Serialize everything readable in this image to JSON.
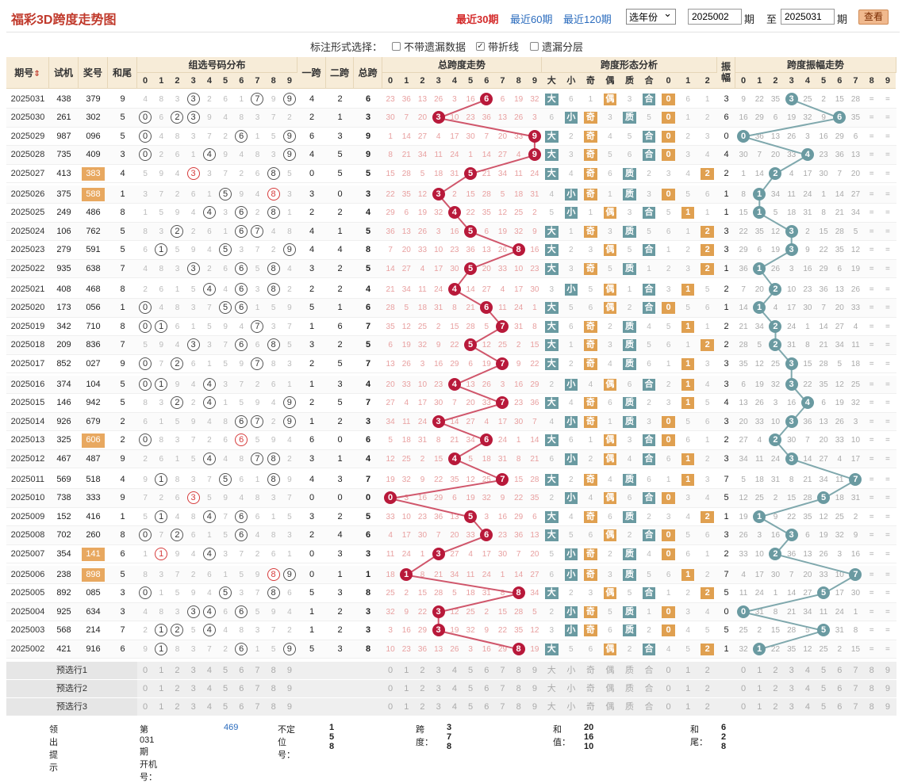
{
  "header": {
    "title": "福彩3D跨度走势图",
    "periods": [
      "最近30期",
      "最近60期",
      "最近120期"
    ],
    "active_period": 0,
    "year_select": "选年份",
    "from_value": "2025002",
    "from_label": "期",
    "to_label": "至",
    "to_value": "2025031",
    "to_label2": "期",
    "search_button": "查看"
  },
  "options": {
    "label": "标注形式选择：",
    "items": [
      {
        "label": "不带遗漏数据",
        "checked": false
      },
      {
        "label": "带折线",
        "checked": true
      },
      {
        "label": "遗漏分层",
        "checked": false
      }
    ]
  },
  "table": {
    "group_headers": [
      "期号",
      "试机",
      "奖号",
      "和尾",
      "组选号码分布",
      "一跨",
      "二跨",
      "总跨",
      "总跨度走势",
      "跨度形态分析",
      "振幅",
      "跨度振幅走势"
    ],
    "sort_icon": "sort-icon",
    "digits": [
      "0",
      "1",
      "2",
      "3",
      "4",
      "5",
      "6",
      "7",
      "8",
      "9"
    ],
    "shape_headers": [
      "大",
      "小",
      "奇",
      "偶",
      "质",
      "合",
      "0",
      "1",
      "2"
    ],
    "rows": [
      {
        "period": "2025031",
        "trial": "438",
        "draw": "379",
        "tail": "9",
        "trial_hl": false,
        "span1": "4",
        "span2": "2",
        "total": "6",
        "amp": "3"
      },
      {
        "period": "2025030",
        "trial": "261",
        "draw": "302",
        "tail": "5",
        "trial_hl": false,
        "span1": "2",
        "span2": "1",
        "total": "3",
        "amp": "6"
      },
      {
        "period": "2025029",
        "trial": "987",
        "draw": "096",
        "tail": "5",
        "trial_hl": false,
        "span1": "6",
        "span2": "3",
        "total": "9",
        "amp": "0"
      },
      {
        "period": "2025028",
        "trial": "735",
        "draw": "409",
        "tail": "3",
        "trial_hl": false,
        "span1": "4",
        "span2": "5",
        "total": "9",
        "amp": "4"
      },
      {
        "period": "2025027",
        "trial": "413",
        "draw": "383",
        "tail": "4",
        "trial_hl": true,
        "span1": "0",
        "span2": "5",
        "total": "5",
        "amp": "2"
      },
      {
        "period": "2025026",
        "trial": "375",
        "draw": "588",
        "tail": "1",
        "trial_hl": true,
        "span1": "3",
        "span2": "0",
        "total": "3",
        "amp": "1"
      },
      {
        "period": "2025025",
        "trial": "249",
        "draw": "486",
        "tail": "8",
        "trial_hl": false,
        "span1": "2",
        "span2": "2",
        "total": "4",
        "amp": "1"
      },
      {
        "period": "2025024",
        "trial": "106",
        "draw": "762",
        "tail": "5",
        "trial_hl": false,
        "span1": "4",
        "span2": "1",
        "total": "5",
        "amp": "3"
      },
      {
        "period": "2025023",
        "trial": "279",
        "draw": "591",
        "tail": "5",
        "trial_hl": false,
        "span1": "4",
        "span2": "4",
        "total": "8",
        "amp": "3"
      },
      {
        "period": "2025022",
        "trial": "935",
        "draw": "638",
        "tail": "7",
        "trial_hl": false,
        "span1": "3",
        "span2": "2",
        "total": "5",
        "amp": "1"
      },
      {
        "period": "2025021",
        "trial": "408",
        "draw": "468",
        "tail": "8",
        "trial_hl": false,
        "span1": "2",
        "span2": "2",
        "total": "4",
        "amp": "2"
      },
      {
        "period": "2025020",
        "trial": "173",
        "draw": "056",
        "tail": "1",
        "trial_hl": false,
        "span1": "5",
        "span2": "1",
        "total": "6",
        "amp": "1"
      },
      {
        "period": "2025019",
        "trial": "342",
        "draw": "710",
        "tail": "8",
        "trial_hl": false,
        "span1": "1",
        "span2": "6",
        "total": "7",
        "amp": "2"
      },
      {
        "period": "2025018",
        "trial": "209",
        "draw": "836",
        "tail": "7",
        "trial_hl": false,
        "span1": "3",
        "span2": "2",
        "total": "5",
        "amp": "2"
      },
      {
        "period": "2025017",
        "trial": "852",
        "draw": "027",
        "tail": "9",
        "trial_hl": false,
        "span1": "2",
        "span2": "5",
        "total": "7",
        "amp": "3"
      },
      {
        "period": "2025016",
        "trial": "374",
        "draw": "104",
        "tail": "5",
        "trial_hl": false,
        "span1": "1",
        "span2": "3",
        "total": "4",
        "amp": "3"
      },
      {
        "period": "2025015",
        "trial": "146",
        "draw": "942",
        "tail": "5",
        "trial_hl": false,
        "span1": "2",
        "span2": "5",
        "total": "7",
        "amp": "4"
      },
      {
        "period": "2025014",
        "trial": "926",
        "draw": "679",
        "tail": "2",
        "trial_hl": false,
        "span1": "1",
        "span2": "2",
        "total": "3",
        "amp": "3"
      },
      {
        "period": "2025013",
        "trial": "325",
        "draw": "606",
        "tail": "2",
        "trial_hl": true,
        "span1": "6",
        "span2": "0",
        "total": "6",
        "amp": "2"
      },
      {
        "period": "2025012",
        "trial": "467",
        "draw": "487",
        "tail": "9",
        "trial_hl": false,
        "span1": "3",
        "span2": "1",
        "total": "4",
        "amp": "3"
      },
      {
        "period": "2025011",
        "trial": "569",
        "draw": "518",
        "tail": "4",
        "trial_hl": false,
        "span1": "4",
        "span2": "3",
        "total": "7",
        "amp": "7"
      },
      {
        "period": "2025010",
        "trial": "738",
        "draw": "333",
        "tail": "9",
        "trial_hl": false,
        "span1": "0",
        "span2": "0",
        "total": "0",
        "amp": "5"
      },
      {
        "period": "2025009",
        "trial": "152",
        "draw": "416",
        "tail": "1",
        "trial_hl": false,
        "span1": "3",
        "span2": "2",
        "total": "5",
        "amp": "1"
      },
      {
        "period": "2025008",
        "trial": "702",
        "draw": "260",
        "tail": "8",
        "trial_hl": false,
        "span1": "2",
        "span2": "4",
        "total": "6",
        "amp": "3"
      },
      {
        "period": "2025007",
        "trial": "354",
        "draw": "141",
        "tail": "6",
        "trial_hl": true,
        "span1": "0",
        "span2": "3",
        "total": "3",
        "amp": "2"
      },
      {
        "period": "2025006",
        "trial": "238",
        "draw": "898",
        "tail": "5",
        "trial_hl": true,
        "span1": "0",
        "span2": "1",
        "total": "1",
        "amp": "7"
      },
      {
        "period": "2025005",
        "trial": "892",
        "draw": "085",
        "tail": "3",
        "trial_hl": false,
        "span1": "5",
        "span2": "3",
        "total": "8",
        "amp": "5"
      },
      {
        "period": "2025004",
        "trial": "925",
        "draw": "634",
        "tail": "3",
        "trial_hl": false,
        "span1": "1",
        "span2": "2",
        "total": "3",
        "amp": "0"
      },
      {
        "period": "2025003",
        "trial": "568",
        "draw": "214",
        "tail": "7",
        "trial_hl": false,
        "span1": "1",
        "span2": "2",
        "total": "3",
        "amp": "5"
      },
      {
        "period": "2025002",
        "trial": "421",
        "draw": "916",
        "tail": "6",
        "trial_hl": false,
        "span1": "5",
        "span2": "3",
        "total": "8",
        "amp": "1"
      }
    ],
    "preselect": [
      "预选行1",
      "预选行2",
      "预选行3"
    ],
    "colors": {
      "trend_ball": "#b8193a",
      "trend_line": "#d0566b",
      "amp_ball": "#6a9aa1",
      "amp_line": "#7fa8ad",
      "tag_teal": "#6a9aa1",
      "tag_orange": "#e0a050",
      "trial_hl": "#e8a860",
      "header_bg": "#f7ecd8"
    }
  },
  "footer": {
    "label": "领出提示",
    "issue": "第031期 开机号：",
    "issue_num": "469",
    "pos_label": "不定位号：",
    "pos_val": "1 5 8",
    "span_label": "跨度：",
    "span_val": "3 7 8",
    "sum_label": "和值：",
    "sum_val": "20 16 10",
    "tail_label": "和尾：",
    "tail_val": "6 2 8"
  }
}
